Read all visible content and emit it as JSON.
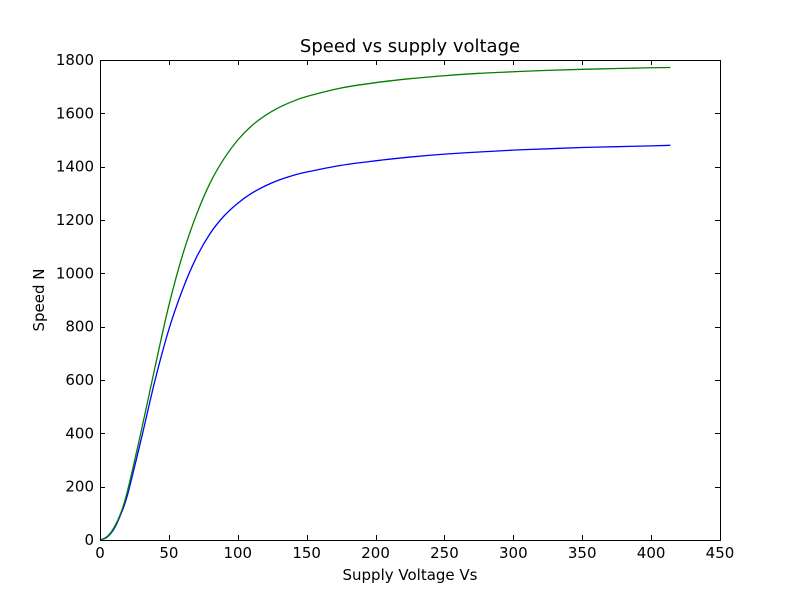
{
  "chart_data": {
    "type": "line",
    "title": "Speed vs supply voltage",
    "xlabel": "Supply Voltage Vs",
    "ylabel": "Speed N",
    "xlim": [
      0,
      450
    ],
    "ylim": [
      0,
      1800
    ],
    "xticks": [
      0,
      50,
      100,
      150,
      200,
      250,
      300,
      350,
      400,
      450
    ],
    "yticks": [
      0,
      200,
      400,
      600,
      800,
      1000,
      1200,
      1400,
      1600,
      1800
    ],
    "grid": false,
    "series": [
      {
        "color": "#0000ff",
        "x": [
          0,
          5,
          10,
          15,
          20,
          30,
          40,
          50,
          60,
          70,
          80,
          90,
          100,
          110,
          120,
          130,
          140,
          150,
          175,
          200,
          225,
          250,
          275,
          300,
          325,
          350,
          375,
          400,
          414
        ],
        "y": [
          0,
          10,
          40,
          95,
          170,
          380,
          600,
          790,
          940,
          1060,
          1150,
          1215,
          1263,
          1300,
          1328,
          1350,
          1367,
          1380,
          1405,
          1422,
          1436,
          1447,
          1455,
          1462,
          1467,
          1472,
          1475,
          1478,
          1480
        ]
      },
      {
        "color": "#007f00",
        "x": [
          0,
          5,
          10,
          15,
          20,
          30,
          40,
          50,
          60,
          70,
          80,
          90,
          100,
          110,
          120,
          130,
          140,
          150,
          175,
          200,
          225,
          250,
          275,
          300,
          325,
          350,
          375,
          400,
          414
        ],
        "y": [
          0,
          12,
          45,
          100,
          185,
          410,
          650,
          880,
          1070,
          1220,
          1340,
          1430,
          1500,
          1553,
          1592,
          1622,
          1645,
          1663,
          1695,
          1715,
          1730,
          1741,
          1750,
          1756,
          1761,
          1765,
          1768,
          1771,
          1772
        ]
      }
    ]
  }
}
